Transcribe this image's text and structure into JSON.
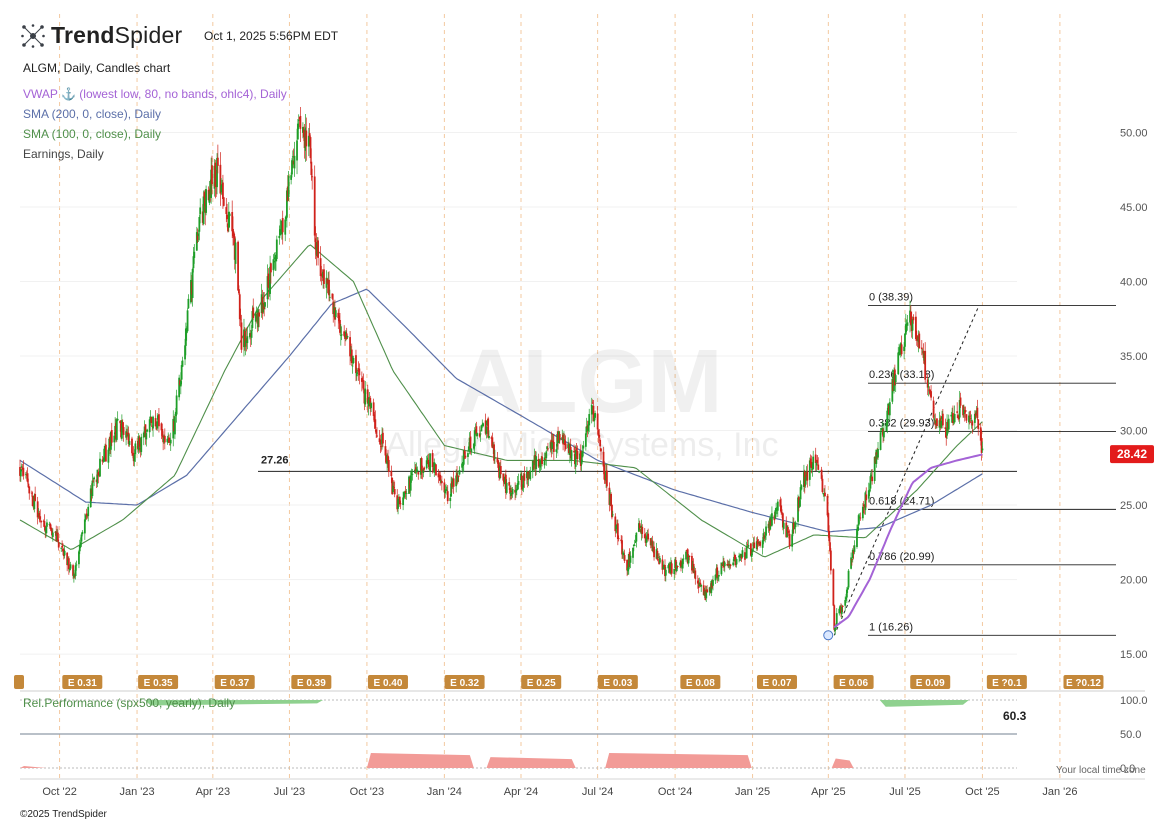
{
  "header": {
    "brand_bold": "Trend",
    "brand_light": "Spider",
    "timestamp": "Oct 1, 2025 5:56PM EDT"
  },
  "legend": {
    "title": "ALGM, Daily, Candles chart",
    "vwap": "VWAP ⚓ (lowest low, 80, no bands, ohlc4), Daily",
    "sma200": "SMA (200, 0, close), Daily",
    "sma100": "SMA (100, 0, close), Daily",
    "earnings": "Earnings, Daily"
  },
  "colors": {
    "up": "#1e9e28",
    "down": "#d0221b",
    "sma200": "#5b6fa8",
    "sma100": "#4f8f4a",
    "vwap": "#a463d6",
    "price_tag": "#e31b1b",
    "earnings_tag": "#c4883a",
    "rel_perf_pos": "#8fd18f",
    "rel_perf_neg": "#f29b97"
  },
  "watermark": {
    "symbol": "ALGM",
    "company": "Allegro MicroSystems, Inc"
  },
  "footer": {
    "copyright": "©2025 TrendSpider",
    "local_time_note": "Your local time zone"
  },
  "chart_data": {
    "type": "candlestick",
    "symbol": "ALGM",
    "timeframe": "Daily",
    "x_range": [
      "2022-08-15",
      "2026-02-20"
    ],
    "ylim": [
      14.2,
      55.0
    ],
    "y_ticks": [
      "15.00",
      "20.00",
      "25.00",
      "30.00",
      "35.00",
      "40.00",
      "45.00",
      "50.00"
    ],
    "x_ticks": [
      {
        "label": "Oct '22",
        "date": "2022-10-01"
      },
      {
        "label": "Jan '23",
        "date": "2023-01-01"
      },
      {
        "label": "Apr '23",
        "date": "2023-04-01"
      },
      {
        "label": "Jul '23",
        "date": "2023-07-01"
      },
      {
        "label": "Oct '23",
        "date": "2023-10-01"
      },
      {
        "label": "Jan '24",
        "date": "2024-01-01"
      },
      {
        "label": "Apr '24",
        "date": "2024-04-01"
      },
      {
        "label": "Jul '24",
        "date": "2024-07-01"
      },
      {
        "label": "Oct '24",
        "date": "2024-10-01"
      },
      {
        "label": "Jan '25",
        "date": "2025-01-01"
      },
      {
        "label": "Apr '25",
        "date": "2025-04-01"
      },
      {
        "label": "Jul '25",
        "date": "2025-07-01"
      },
      {
        "label": "Oct '25",
        "date": "2025-10-01"
      },
      {
        "label": "Jan '26",
        "date": "2026-01-01"
      }
    ],
    "last_price": "28.42",
    "price_path": [
      [
        "2022-08-15",
        27.5
      ],
      [
        "2022-09-10",
        24.0
      ],
      [
        "2022-10-05",
        22.0
      ],
      [
        "2022-10-18",
        20.0
      ],
      [
        "2022-11-10",
        26.5
      ],
      [
        "2022-12-10",
        30.5
      ],
      [
        "2022-12-28",
        28.5
      ],
      [
        "2023-01-20",
        31.0
      ],
      [
        "2023-02-10",
        29.0
      ],
      [
        "2023-02-25",
        35.0
      ],
      [
        "2023-03-15",
        44.0
      ],
      [
        "2023-04-05",
        47.5
      ],
      [
        "2023-04-28",
        42.0
      ],
      [
        "2023-05-05",
        36.0
      ],
      [
        "2023-05-30",
        38.5
      ],
      [
        "2023-06-25",
        44.0
      ],
      [
        "2023-07-10",
        50.5
      ],
      [
        "2023-07-25",
        49.5
      ],
      [
        "2023-08-02",
        42.0
      ],
      [
        "2023-08-18",
        39.0
      ],
      [
        "2023-09-05",
        36.5
      ],
      [
        "2023-09-25",
        33.0
      ],
      [
        "2023-10-20",
        29.0
      ],
      [
        "2023-11-05",
        25.0
      ],
      [
        "2023-11-30",
        27.5
      ],
      [
        "2023-12-15",
        28.0
      ],
      [
        "2024-01-05",
        25.5
      ],
      [
        "2024-01-25",
        28.5
      ],
      [
        "2024-02-20",
        30.5
      ],
      [
        "2024-03-10",
        26.5
      ],
      [
        "2024-03-25",
        26.0
      ],
      [
        "2024-04-20",
        28.0
      ],
      [
        "2024-05-15",
        29.5
      ],
      [
        "2024-06-10",
        28.0
      ],
      [
        "2024-06-25",
        31.5
      ],
      [
        "2024-07-05",
        28.5
      ],
      [
        "2024-07-20",
        24.0
      ],
      [
        "2024-08-05",
        21.0
      ],
      [
        "2024-08-20",
        23.5
      ],
      [
        "2024-09-20",
        20.5
      ],
      [
        "2024-10-15",
        21.5
      ],
      [
        "2024-11-05",
        18.8
      ],
      [
        "2024-11-25",
        21.0
      ],
      [
        "2024-12-20",
        21.5
      ],
      [
        "2025-01-15",
        23.0
      ],
      [
        "2025-02-01",
        24.8
      ],
      [
        "2025-02-15",
        22.5
      ],
      [
        "2025-03-01",
        26.5
      ],
      [
        "2025-03-15",
        28.0
      ],
      [
        "2025-03-30",
        25.5
      ],
      [
        "2025-04-08",
        17.0
      ],
      [
        "2025-04-20",
        18.5
      ],
      [
        "2025-05-05",
        23.5
      ],
      [
        "2025-05-20",
        26.5
      ],
      [
        "2025-06-10",
        31.0
      ],
      [
        "2025-06-25",
        35.5
      ],
      [
        "2025-07-08",
        37.5
      ],
      [
        "2025-07-22",
        35.0
      ],
      [
        "2025-08-05",
        31.0
      ],
      [
        "2025-08-20",
        30.0
      ],
      [
        "2025-09-05",
        31.5
      ],
      [
        "2025-09-15",
        30.5
      ],
      [
        "2025-09-24",
        31.0
      ],
      [
        "2025-10-01",
        28.4
      ]
    ],
    "sma200_path": [
      [
        "2022-08-15",
        28.0
      ],
      [
        "2022-11-01",
        25.2
      ],
      [
        "2023-01-01",
        25.0
      ],
      [
        "2023-03-01",
        27.0
      ],
      [
        "2023-05-01",
        31.0
      ],
      [
        "2023-07-01",
        35.0
      ],
      [
        "2023-08-20",
        38.5
      ],
      [
        "2023-10-01",
        39.5
      ],
      [
        "2023-11-15",
        37.0
      ],
      [
        "2024-01-15",
        33.5
      ],
      [
        "2024-04-01",
        31.0
      ],
      [
        "2024-07-01",
        28.0
      ],
      [
        "2024-10-01",
        26.0
      ],
      [
        "2025-01-01",
        24.5
      ],
      [
        "2025-04-01",
        23.2
      ],
      [
        "2025-06-01",
        23.5
      ],
      [
        "2025-08-01",
        25.0
      ],
      [
        "2025-10-01",
        27.1
      ]
    ],
    "sma100_path": [
      [
        "2022-08-15",
        24.0
      ],
      [
        "2022-10-15",
        22.0
      ],
      [
        "2022-12-15",
        24.0
      ],
      [
        "2023-02-15",
        27.0
      ],
      [
        "2023-04-15",
        34.0
      ],
      [
        "2023-06-01",
        39.0
      ],
      [
        "2023-07-25",
        42.5
      ],
      [
        "2023-09-15",
        40.0
      ],
      [
        "2023-11-01",
        34.0
      ],
      [
        "2024-01-01",
        29.0
      ],
      [
        "2024-03-15",
        28.0
      ],
      [
        "2024-06-01",
        28.0
      ],
      [
        "2024-08-15",
        27.5
      ],
      [
        "2024-11-01",
        24.0
      ],
      [
        "2025-01-15",
        21.5
      ],
      [
        "2025-03-15",
        23.0
      ],
      [
        "2025-05-15",
        22.8
      ],
      [
        "2025-07-15",
        26.0
      ],
      [
        "2025-09-01",
        29.0
      ],
      [
        "2025-10-01",
        30.6
      ]
    ],
    "vwap_path": [
      [
        "2025-04-08",
        16.8
      ],
      [
        "2025-04-25",
        17.5
      ],
      [
        "2025-05-20",
        20.0
      ],
      [
        "2025-06-15",
        23.5
      ],
      [
        "2025-07-10",
        26.5
      ],
      [
        "2025-08-01",
        27.5
      ],
      [
        "2025-09-01",
        28.0
      ],
      [
        "2025-10-01",
        28.4
      ]
    ],
    "horizontal_line": {
      "label": "27.26",
      "value": 27.26,
      "from": "2023-03-25",
      "to": "2025-10-01"
    },
    "fib_retracement": {
      "from": "2025-04-08",
      "to": "2025-07-10",
      "levels": [
        {
          "label": "0 (38.39)",
          "value": 38.39
        },
        {
          "label": "0.236 (33.18)",
          "value": 33.18
        },
        {
          "label": "0.382 (29.93)",
          "value": 29.93
        },
        {
          "label": "0.618 (24.71)",
          "value": 24.71
        },
        {
          "label": "0.786 (20.99)",
          "value": 20.99
        },
        {
          "label": "1 (16.26)",
          "value": 16.26
        }
      ]
    },
    "earnings": [
      {
        "label": "E 0.31",
        "date": "2022-10-28"
      },
      {
        "label": "E 0.35",
        "date": "2023-01-26"
      },
      {
        "label": "E 0.37",
        "date": "2023-04-27"
      },
      {
        "label": "E 0.39",
        "date": "2023-07-27"
      },
      {
        "label": "E 0.40",
        "date": "2023-10-26"
      },
      {
        "label": "E 0.32",
        "date": "2024-01-25"
      },
      {
        "label": "E 0.25",
        "date": "2024-04-25"
      },
      {
        "label": "E 0.03",
        "date": "2024-07-25"
      },
      {
        "label": "E 0.08",
        "date": "2024-10-31"
      },
      {
        "label": "E 0.07",
        "date": "2025-01-30"
      },
      {
        "label": "E 0.06",
        "date": "2025-05-01"
      },
      {
        "label": "E 0.09",
        "date": "2025-07-31"
      },
      {
        "label": "E ?0.1",
        "date": "2025-10-30"
      },
      {
        "label": "E ?0.12",
        "date": "2026-01-29"
      }
    ],
    "rel_performance": {
      "label": "Rel.Performance (spx500, yearly), Daily",
      "ylim": [
        0,
        100
      ],
      "y_ticks": [
        "0.0",
        "50.0",
        "100.0"
      ],
      "last_value": "60.3",
      "positive_ranges": [
        [
          "2023-01-10",
          "2023-08-10",
          92
        ],
        [
          "2025-06-01",
          "2025-09-15",
          90
        ]
      ],
      "negative_ranges": [
        [
          "2022-08-15",
          "2022-09-20",
          3
        ],
        [
          "2023-10-01",
          "2024-02-05",
          22
        ],
        [
          "2024-02-20",
          "2024-06-05",
          16
        ],
        [
          "2024-07-10",
          "2024-12-31",
          22
        ],
        [
          "2025-04-05",
          "2025-05-01",
          14
        ]
      ]
    }
  }
}
